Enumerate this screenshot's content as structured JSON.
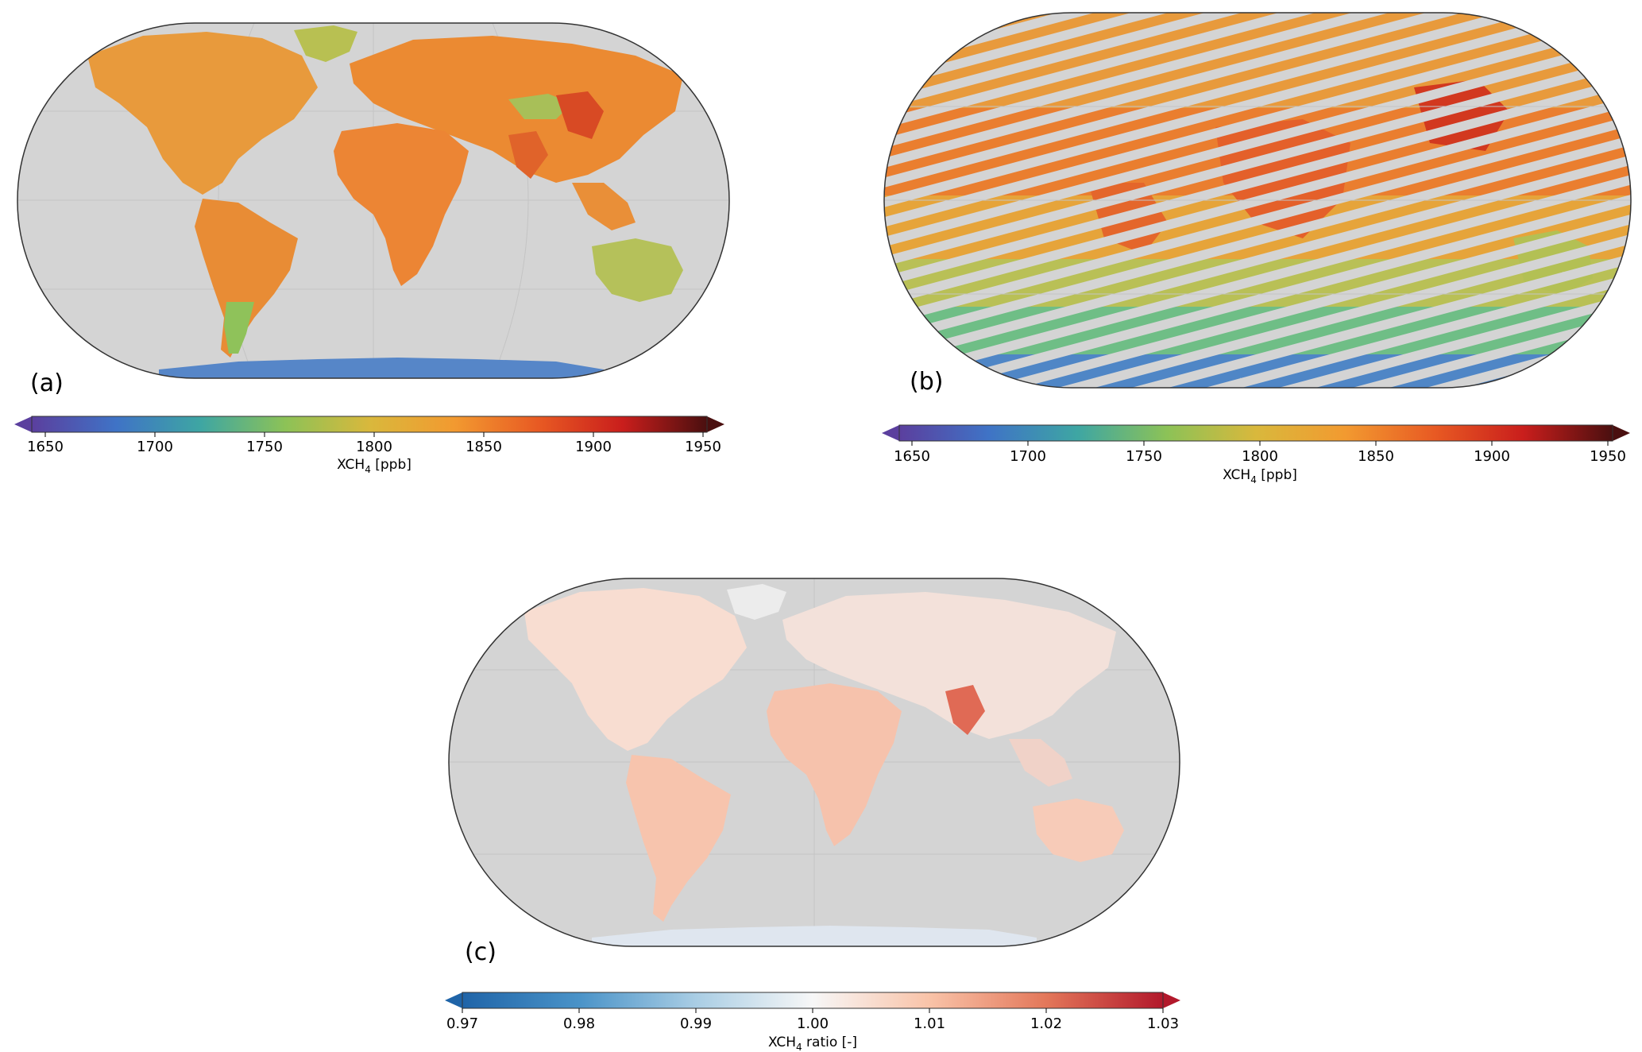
{
  "panels": [
    {
      "label": "(a)",
      "style": "full",
      "colorbar": {
        "ticks": [
          "1650",
          "1700",
          "1750",
          "1800",
          "1850",
          "1900",
          "1950"
        ],
        "label_main": "XCH",
        "label_sub": "4",
        "label_rest": " [ppb]",
        "colormap": [
          "#5b3f9e",
          "#3f73c6",
          "#3ea6a3",
          "#8cc257",
          "#d9b83c",
          "#f29a30",
          "#e85a23",
          "#c91e1c",
          "#4a0f0f"
        ]
      }
    },
    {
      "label": "(b)",
      "style": "stripes",
      "colorbar": {
        "ticks": [
          "1650",
          "1700",
          "1750",
          "1800",
          "1850",
          "1900",
          "1950"
        ],
        "label_main": "XCH",
        "label_sub": "4",
        "label_rest": " [ppb]",
        "colormap": [
          "#5b3f9e",
          "#3f73c6",
          "#3ea6a3",
          "#8cc257",
          "#d9b83c",
          "#f29a30",
          "#e85a23",
          "#c91e1c",
          "#4a0f0f"
        ]
      }
    },
    {
      "label": "(c)",
      "style": "ratio",
      "colorbar": {
        "ticks": [
          "0.97",
          "0.98",
          "0.99",
          "1.00",
          "1.01",
          "1.02",
          "1.03"
        ],
        "label_main": "XCH",
        "label_sub": "4",
        "label_rest": " ratio [-]",
        "colormap": [
          "#1f64a8",
          "#4a93c8",
          "#a9cde4",
          "#f7f7f7",
          "#f9c3a8",
          "#e3775a",
          "#b2182b"
        ]
      }
    }
  ]
}
